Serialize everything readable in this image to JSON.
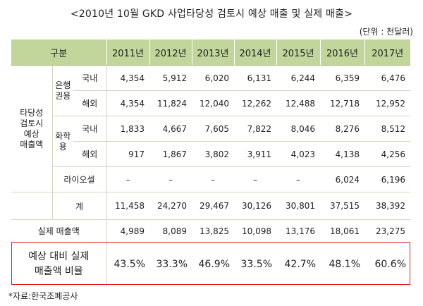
{
  "title": "<2010년 10월 GKD 사업타당성 검토시 예상 매출 및 실제 매출>",
  "unit": "(단위 : 천달러)",
  "source": "*자료:한국조폐공사",
  "header": {
    "category": "구분",
    "years": [
      "2011년",
      "2012년",
      "2013년",
      "2014년",
      "2015년",
      "2016년",
      "2017년"
    ]
  },
  "groups": {
    "forecast": "타당성\n검토시\n예상\n매출액",
    "bank": "은행\n권용",
    "chem": "화학\n용"
  },
  "labels": {
    "domestic": "국내",
    "overseas": "해외",
    "lifescience": "라이오셀",
    "total": "계",
    "actual": "실제 매출액",
    "ratio": "예상 대비 실제\n매출액 비율"
  },
  "rows": {
    "bank_domestic": [
      "4,354",
      "5,912",
      "6,020",
      "6,131",
      "6,244",
      "6,359",
      "6,476"
    ],
    "bank_overseas": [
      "4,354",
      "11,824",
      "12,040",
      "12,262",
      "12,488",
      "12,718",
      "12,952"
    ],
    "chem_domestic": [
      "1,833",
      "4,667",
      "7,605",
      "7,822",
      "8,046",
      "8,276",
      "8,512"
    ],
    "chem_overseas": [
      "917",
      "1,867",
      "3,802",
      "3,911",
      "4,023",
      "4,138",
      "4,256"
    ],
    "lifescience": [
      "–",
      "–",
      "–",
      "–",
      "–",
      "6,024",
      "6,196"
    ],
    "total": [
      "11,458",
      "24,270",
      "29,467",
      "30,126",
      "30,801",
      "37,515",
      "38,392"
    ],
    "actual": [
      "4,989",
      "8,089",
      "13,825",
      "10,098",
      "13,176",
      "18,061",
      "23,275"
    ],
    "ratio": [
      "43.5%",
      "33.3%",
      "46.9%",
      "33.5%",
      "42.7%",
      "48.1%",
      "60.6%"
    ]
  }
}
